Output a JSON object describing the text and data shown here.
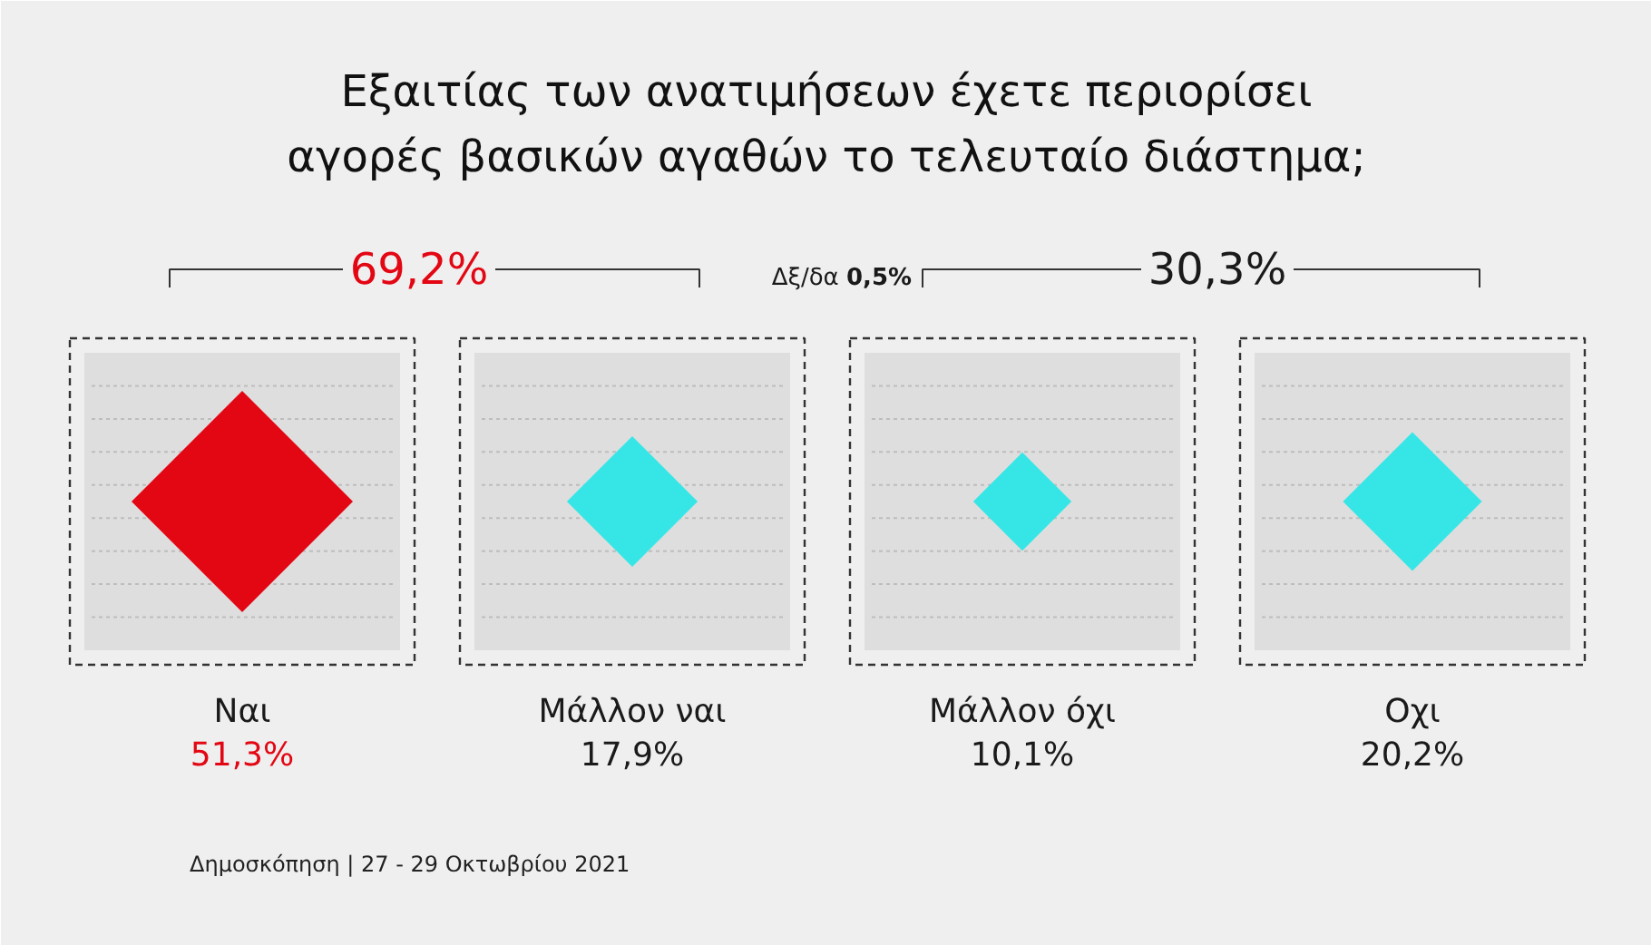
{
  "chart_data": {
    "type": "other",
    "title": "Εξαιτίας των ανατιμήσεων έχετε περιορίσει\nαγορές βασικών αγαθών το τελευταίο διάστημα;",
    "categories": [
      "Ναι",
      "Μάλλον ναι",
      "Μάλλον όχι",
      "Οχι"
    ],
    "values": [
      51.3,
      17.9,
      10.1,
      20.2
    ],
    "colors": [
      "#e30613",
      "#36e6e6",
      "#36e6e6",
      "#36e6e6"
    ],
    "value_labels": [
      "51,3%",
      "17,9%",
      "10,1%",
      "20,2%"
    ],
    "annotations": [
      "69,2%",
      "30,3%",
      "Δξ/δα 0,5%",
      "Δημοσκόπηση | 27 - 29 Οκτωβρίου 2021"
    ]
  }
}
